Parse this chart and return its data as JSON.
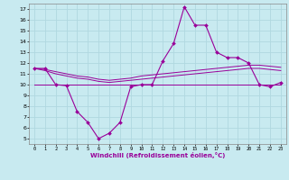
{
  "xlabel": "Windchill (Refroidissement éolien,°C)",
  "hours": [
    0,
    1,
    2,
    3,
    4,
    5,
    6,
    7,
    8,
    9,
    10,
    11,
    12,
    13,
    14,
    15,
    16,
    17,
    18,
    19,
    20,
    21,
    22,
    23
  ],
  "windchill": [
    11.5,
    11.5,
    10.0,
    9.9,
    7.5,
    6.5,
    5.0,
    5.5,
    6.5,
    9.8,
    10.0,
    10.0,
    12.2,
    13.8,
    17.2,
    15.5,
    15.5,
    13.0,
    12.5,
    12.5,
    12.0,
    10.0,
    9.8,
    10.2
  ],
  "line2": [
    11.5,
    11.4,
    11.2,
    11.0,
    10.8,
    10.7,
    10.5,
    10.4,
    10.5,
    10.6,
    10.8,
    10.9,
    11.0,
    11.1,
    11.2,
    11.3,
    11.4,
    11.5,
    11.6,
    11.7,
    11.8,
    11.8,
    11.7,
    11.6
  ],
  "line3": [
    11.5,
    11.3,
    11.0,
    10.8,
    10.6,
    10.5,
    10.3,
    10.2,
    10.3,
    10.4,
    10.5,
    10.6,
    10.7,
    10.8,
    10.9,
    11.0,
    11.1,
    11.2,
    11.3,
    11.4,
    11.5,
    11.5,
    11.4,
    11.3
  ],
  "line4": [
    10.0,
    10.0,
    10.0,
    10.0,
    10.0,
    10.0,
    10.0,
    10.0,
    10.0,
    10.0,
    10.0,
    10.0,
    10.0,
    10.0,
    10.0,
    10.0,
    10.0,
    10.0,
    10.0,
    10.0,
    10.0,
    10.0,
    10.0,
    10.0
  ],
  "line_color": "#990099",
  "bg_color": "#c8eaf0",
  "grid_color": "#b0d8e0",
  "yticks": [
    5,
    6,
    7,
    8,
    9,
    10,
    11,
    12,
    13,
    14,
    15,
    16,
    17
  ],
  "xticks": [
    0,
    1,
    2,
    3,
    4,
    5,
    6,
    7,
    8,
    9,
    10,
    11,
    12,
    13,
    14,
    15,
    16,
    17,
    18,
    19,
    20,
    21,
    22,
    23
  ]
}
